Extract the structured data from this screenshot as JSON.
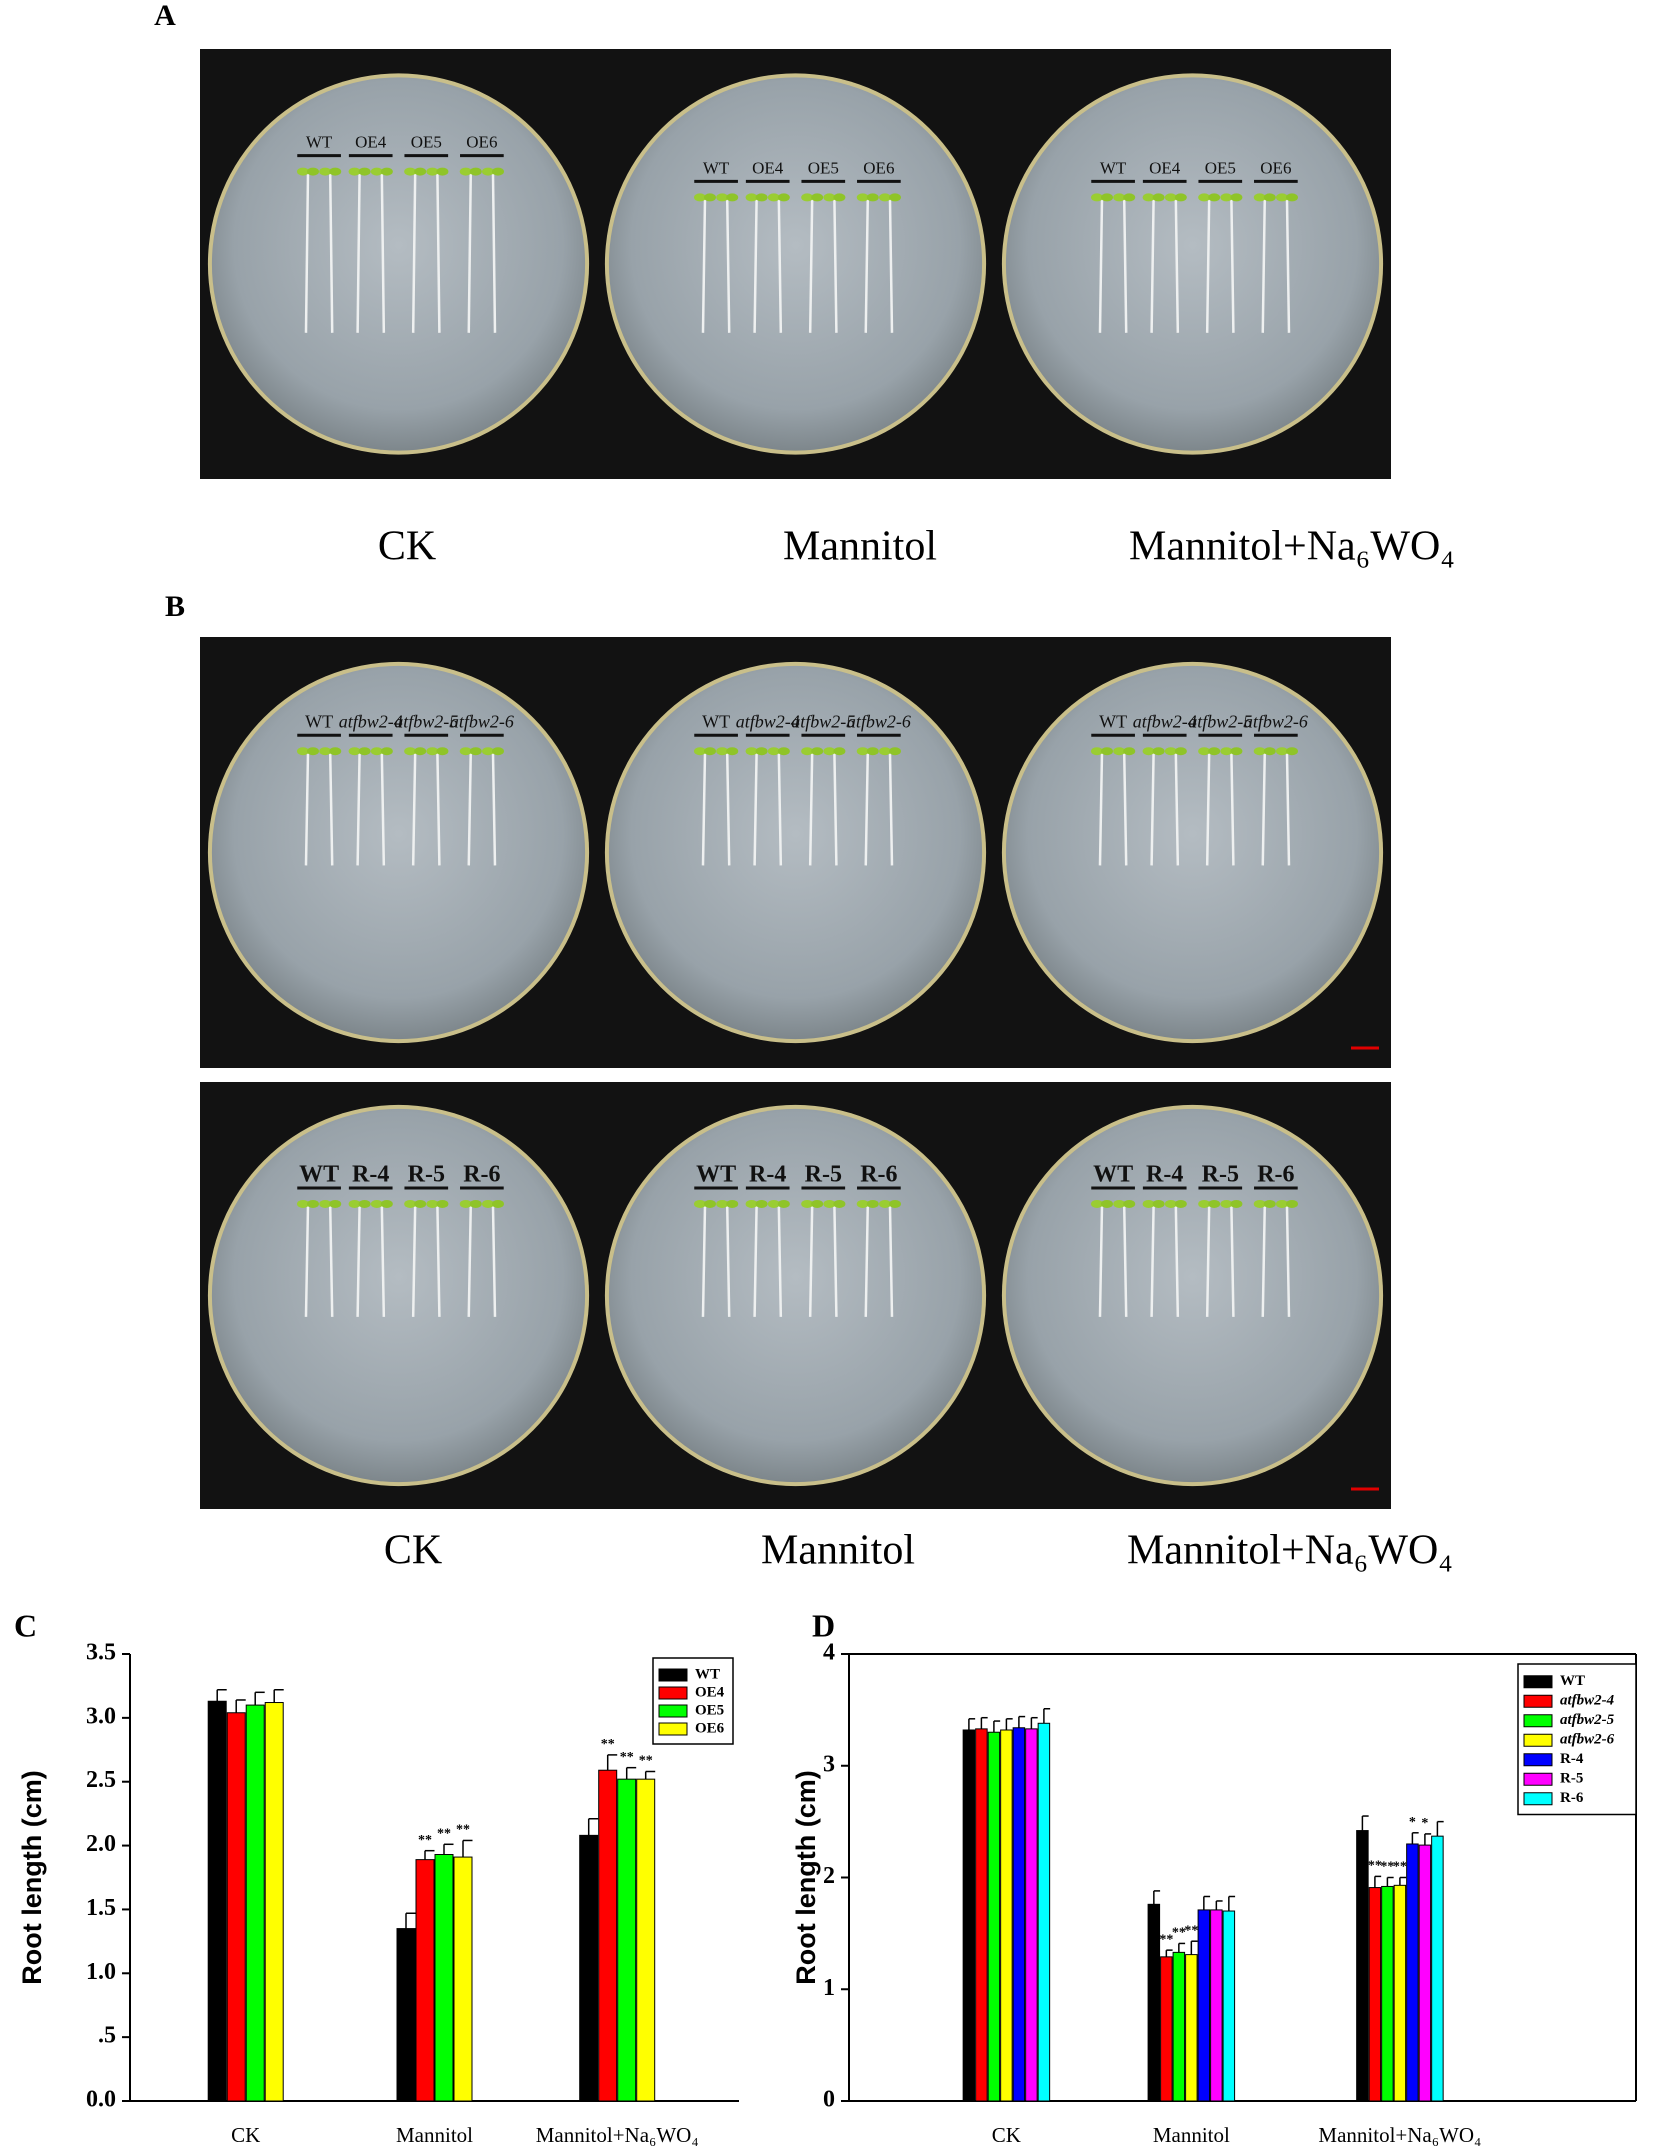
{
  "panel_a": {
    "label": "A",
    "plates": [
      {
        "labels": [
          "WT",
          "OE4",
          "OE5",
          "OE6"
        ]
      },
      {
        "labels": [
          "WT",
          "OE4",
          "OE5",
          "OE6"
        ]
      },
      {
        "labels": [
          "WT",
          "OE4",
          "OE5",
          "OE6"
        ]
      }
    ],
    "captions": [
      "CK",
      "Mannitol",
      "Mannitol+Na₆WO₄"
    ]
  },
  "panel_b": {
    "label": "B",
    "rows": [
      [
        {
          "labels": [
            "WT",
            "atfbw2-4",
            "atfbw2-5",
            "atfbw2-6"
          ]
        },
        {
          "labels": [
            "WT",
            "atfbw2-4",
            "atfbw2-5",
            "atfbw2-6"
          ]
        },
        {
          "labels": [
            "WT",
            "atfbw2-4",
            "atfbw2-5",
            "atfbw2-6"
          ]
        }
      ],
      [
        {
          "labels": [
            "WT",
            "R-4",
            "R-5",
            "R-6"
          ]
        },
        {
          "labels": [
            "WT",
            "R-4",
            "R-5",
            "R-6"
          ]
        },
        {
          "labels": [
            "WT",
            "R-4",
            "R-5",
            "R-6"
          ]
        }
      ]
    ],
    "captions": [
      "CK",
      "Mannitol",
      "Mannitol+Na₆WO₄"
    ]
  },
  "chart_data": [
    {
      "type": "bar",
      "label": "C",
      "ylabel": "Root length (cm)",
      "categories": [
        "CK",
        "Mannitol",
        "Mannitol+Na₆WO₄"
      ],
      "ylim": [
        0,
        3.5
      ],
      "yticks": [
        {
          "value": 0,
          "label": "0.0"
        },
        {
          "value": 0.5,
          "label": ".5"
        },
        {
          "value": 1,
          "label": "1.0"
        },
        1.5,
        {
          "value": 2,
          "label": "2.0"
        },
        2.5,
        {
          "value": 3,
          "label": "3.0"
        },
        3.5
      ],
      "box": false,
      "legend": "upper right",
      "series": [
        {
          "name": "WT",
          "color": "#000000",
          "values": [
            3.13,
            1.35,
            2.08
          ],
          "errors": [
            0.09,
            0.12,
            0.13
          ],
          "annotations": [
            null,
            null,
            null
          ]
        },
        {
          "name": "OE4",
          "color": "#ff0000",
          "values": [
            3.04,
            1.89,
            2.59
          ],
          "errors": [
            0.1,
            0.07,
            0.12
          ],
          "annotations": [
            null,
            "**",
            "**"
          ]
        },
        {
          "name": "OE5",
          "color": "#00ff00",
          "values": [
            3.1,
            1.93,
            2.52
          ],
          "errors": [
            0.1,
            0.08,
            0.09
          ],
          "annotations": [
            null,
            "**",
            "**"
          ]
        },
        {
          "name": "OE6",
          "color": "#ffff00",
          "values": [
            3.12,
            1.91,
            2.52
          ],
          "errors": [
            0.1,
            0.13,
            0.06
          ],
          "annotations": [
            null,
            "**",
            "**"
          ]
        }
      ]
    },
    {
      "type": "bar",
      "label": "D",
      "ylabel": "Root length (cm)",
      "categories": [
        "CK",
        "Mannitol",
        "Mannitol+Na₆WO₄"
      ],
      "ylim": [
        0,
        4
      ],
      "yticks": [
        0,
        1,
        2,
        3,
        4
      ],
      "box": true,
      "legend": "upper right",
      "series": [
        {
          "name": "WT",
          "color": "#000000",
          "values": [
            3.32,
            1.76,
            2.42
          ],
          "errors": [
            0.1,
            0.12,
            0.13
          ],
          "annotations": [
            null,
            null,
            null
          ]
        },
        {
          "name": "atfbw2-4",
          "color": "#ff0000",
          "values": [
            3.33,
            1.29,
            1.91
          ],
          "errors": [
            0.1,
            0.06,
            0.1
          ],
          "annotations": [
            null,
            "**",
            "**"
          ]
        },
        {
          "name": "atfbw2-5",
          "color": "#00ff00",
          "values": [
            3.3,
            1.33,
            1.92
          ],
          "errors": [
            0.1,
            0.08,
            0.08
          ],
          "annotations": [
            null,
            "**",
            "**"
          ]
        },
        {
          "name": "atfbw2-6",
          "color": "#ffff00",
          "values": [
            3.32,
            1.31,
            1.93
          ],
          "errors": [
            0.1,
            0.12,
            0.07
          ],
          "annotations": [
            null,
            "**",
            "**"
          ]
        },
        {
          "name": "R-4",
          "color": "#0000ff",
          "values": [
            3.34,
            1.71,
            2.3
          ],
          "errors": [
            0.1,
            0.12,
            0.1
          ],
          "annotations": [
            null,
            null,
            "*"
          ]
        },
        {
          "name": "R-5",
          "color": "#ff00ff",
          "values": [
            3.33,
            1.71,
            2.29
          ],
          "errors": [
            0.1,
            0.08,
            0.1
          ],
          "annotations": [
            null,
            null,
            "*"
          ]
        },
        {
          "name": "R-6",
          "color": "#00ffff",
          "values": [
            3.38,
            1.7,
            2.37
          ],
          "errors": [
            0.13,
            0.13,
            0.13
          ],
          "annotations": [
            null,
            null,
            null
          ]
        }
      ]
    }
  ]
}
